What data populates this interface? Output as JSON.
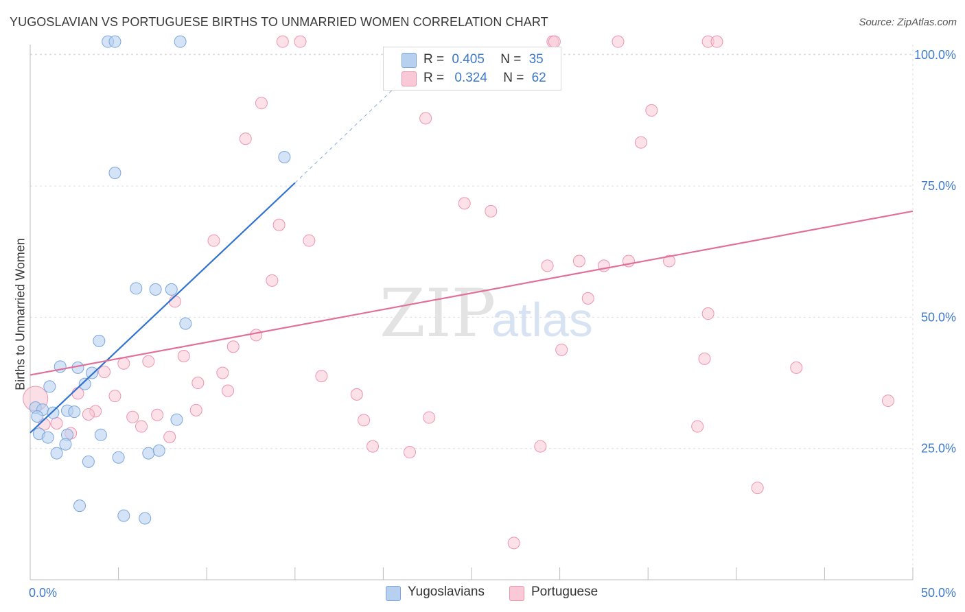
{
  "title": "YUGOSLAVIAN VS PORTUGUESE BIRTHS TO UNMARRIED WOMEN CORRELATION CHART",
  "source": "Source: ZipAtlas.com",
  "watermark": {
    "zip": "ZIP",
    "atlas": "atlas"
  },
  "legend": {
    "rows": [
      {
        "r_label": "R =",
        "r_value": "0.405",
        "n_label": "N =",
        "n_value": "35"
      },
      {
        "r_label": "R =",
        "r_value": "0.324",
        "n_label": "N =",
        "n_value": "62"
      }
    ]
  },
  "bottom_legend": [
    "Yugoslavians",
    "Portuguese"
  ],
  "colors": {
    "blue_fill": "#b8d0f0",
    "blue_stroke": "#7aa6dc",
    "blue_line": "#2f72d0",
    "pink_fill": "#f9c9d7",
    "pink_stroke": "#eb94ae",
    "pink_line": "#e0709a",
    "grid": "#dedede",
    "tick_label": "#3d78c9"
  },
  "chart_data": {
    "type": "scatter",
    "title": "YUGOSLAVIAN VS PORTUGUESE BIRTHS TO UNMARRIED WOMEN CORRELATION CHART",
    "xlabel": "",
    "ylabel": "Births to Unmarried Women",
    "xlim": [
      0,
      50
    ],
    "ylim": [
      0,
      105
    ],
    "x_tick_labels": [
      "0.0%",
      "50.0%"
    ],
    "y_ticks": [
      25,
      50,
      75,
      100
    ],
    "y_tick_labels": [
      "25.0%",
      "50.0%",
      "75.0%",
      "100.0%"
    ],
    "grid": true,
    "series": [
      {
        "name": "Yugoslavians",
        "color": "#7aa6dc",
        "R": 0.405,
        "N": 35,
        "points": [
          [
            4.4,
            102.5
          ],
          [
            4.8,
            102.5
          ],
          [
            8.5,
            102.5
          ],
          [
            4.8,
            77.5
          ],
          [
            14.4,
            80.5
          ],
          [
            6.0,
            55.5
          ],
          [
            7.1,
            55.3
          ],
          [
            8.0,
            55.3
          ],
          [
            8.8,
            48.8
          ],
          [
            3.9,
            45.5
          ],
          [
            1.7,
            40.6
          ],
          [
            2.7,
            40.4
          ],
          [
            3.5,
            39.4
          ],
          [
            3.1,
            37.3
          ],
          [
            1.1,
            36.8
          ],
          [
            0.3,
            32.8
          ],
          [
            0.7,
            32.4
          ],
          [
            1.3,
            31.8
          ],
          [
            2.1,
            32.2
          ],
          [
            2.5,
            32.0
          ],
          [
            0.4,
            31.1
          ],
          [
            8.3,
            30.5
          ],
          [
            0.5,
            27.8
          ],
          [
            1.0,
            27.1
          ],
          [
            2.1,
            27.6
          ],
          [
            4.0,
            27.6
          ],
          [
            2.0,
            25.8
          ],
          [
            1.5,
            24.1
          ],
          [
            6.7,
            24.1
          ],
          [
            7.3,
            24.6
          ],
          [
            3.3,
            22.5
          ],
          [
            5.0,
            23.3
          ],
          [
            2.8,
            14.1
          ],
          [
            5.3,
            12.2
          ],
          [
            6.5,
            11.7
          ]
        ]
      },
      {
        "name": "Portuguese",
        "color": "#eb94ae",
        "R": 0.324,
        "N": 62,
        "points": [
          [
            14.3,
            102.5
          ],
          [
            15.3,
            102.5
          ],
          [
            29.6,
            102.5
          ],
          [
            33.3,
            102.5
          ],
          [
            38.4,
            102.5
          ],
          [
            38.9,
            102.5
          ],
          [
            13.1,
            90.8
          ],
          [
            22.4,
            87.9
          ],
          [
            35.2,
            89.4
          ],
          [
            12.2,
            84.0
          ],
          [
            34.6,
            83.3
          ],
          [
            24.6,
            71.7
          ],
          [
            26.1,
            70.2
          ],
          [
            14.1,
            67.6
          ],
          [
            10.4,
            64.6
          ],
          [
            15.8,
            64.6
          ],
          [
            29.3,
            59.8
          ],
          [
            31.1,
            60.7
          ],
          [
            32.5,
            59.8
          ],
          [
            33.9,
            60.7
          ],
          [
            36.2,
            60.7
          ],
          [
            13.7,
            57.0
          ],
          [
            8.2,
            53.0
          ],
          [
            31.6,
            53.6
          ],
          [
            38.4,
            50.7
          ],
          [
            12.8,
            46.6
          ],
          [
            11.5,
            44.4
          ],
          [
            30.1,
            43.8
          ],
          [
            8.7,
            42.6
          ],
          [
            38.2,
            42.1
          ],
          [
            6.7,
            41.6
          ],
          [
            5.3,
            41.2
          ],
          [
            4.2,
            39.6
          ],
          [
            10.9,
            39.4
          ],
          [
            16.5,
            38.8
          ],
          [
            43.4,
            40.4
          ],
          [
            9.5,
            37.5
          ],
          [
            11.2,
            36.0
          ],
          [
            2.7,
            35.5
          ],
          [
            18.5,
            35.3
          ],
          [
            4.8,
            35.0
          ],
          [
            48.6,
            34.1
          ],
          [
            9.4,
            32.3
          ],
          [
            3.7,
            32.1
          ],
          [
            7.2,
            31.4
          ],
          [
            3.3,
            31.5
          ],
          [
            5.8,
            31.0
          ],
          [
            22.6,
            30.9
          ],
          [
            18.9,
            30.4
          ],
          [
            1.5,
            29.8
          ],
          [
            0.8,
            29.6
          ],
          [
            6.3,
            29.2
          ],
          [
            37.8,
            29.2
          ],
          [
            2.3,
            27.9
          ],
          [
            7.9,
            27.2
          ],
          [
            19.4,
            25.4
          ],
          [
            21.5,
            24.3
          ],
          [
            28.9,
            25.4
          ],
          [
            41.2,
            17.5
          ],
          [
            27.4,
            7.0
          ],
          [
            29.7,
            102.5
          ],
          [
            0.3,
            34.5
          ]
        ]
      }
    ],
    "trendlines": [
      {
        "series": "Yugoslavians",
        "x1": 0.0,
        "y1": 28.0,
        "x2": 15.0,
        "y2": 75.6,
        "dashed_to_x": 22.6,
        "dashed_to_y": 100.0
      },
      {
        "series": "Portuguese",
        "x1": 0.0,
        "y1": 39.0,
        "x2": 50.0,
        "y2": 70.2
      }
    ]
  }
}
